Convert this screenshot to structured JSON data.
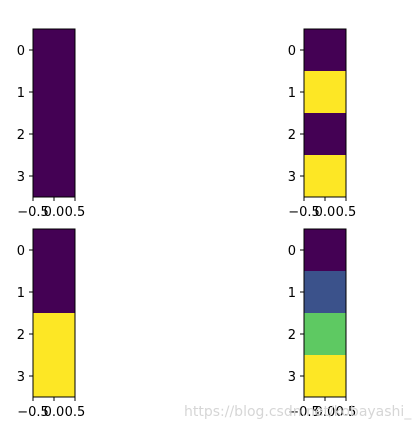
{
  "chart_data": [
    {
      "type": "heatmap",
      "colormap": "viridis",
      "values": [
        [
          0
        ],
        [
          0
        ],
        [
          0
        ],
        [
          0
        ]
      ],
      "x_ticks": [
        "−0.5",
        "0.0",
        "0.5"
      ],
      "y_ticks": [
        "0",
        "1",
        "2",
        "3"
      ]
    },
    {
      "type": "heatmap",
      "colormap": "viridis",
      "values": [
        [
          0
        ],
        [
          1
        ],
        [
          0
        ],
        [
          1
        ]
      ],
      "x_ticks": [
        "−0.5",
        "0.0",
        "0.5"
      ],
      "y_ticks": [
        "0",
        "1",
        "2",
        "3"
      ]
    },
    {
      "type": "heatmap",
      "colormap": "viridis",
      "values": [
        [
          0
        ],
        [
          0
        ],
        [
          1
        ],
        [
          1
        ]
      ],
      "x_ticks": [
        "−0.5",
        "0.0",
        "0.5"
      ],
      "y_ticks": [
        "0",
        "1",
        "2",
        "3"
      ]
    },
    {
      "type": "heatmap",
      "colormap": "viridis",
      "values": [
        [
          0
        ],
        [
          1
        ],
        [
          2
        ],
        [
          3
        ]
      ],
      "x_ticks": [
        "−0.5",
        "0.0",
        "0.5"
      ],
      "y_ticks": [
        "0",
        "1",
        "2",
        "3"
      ]
    }
  ],
  "watermark": "https://blog.csdn.net/kobayashi_",
  "colors": {
    "viridis_0": "#440154",
    "viridis_33": "#3b528b",
    "viridis_67": "#5ec962",
    "viridis_100": "#fde725",
    "axis": "#000000",
    "background": "#ffffff"
  }
}
